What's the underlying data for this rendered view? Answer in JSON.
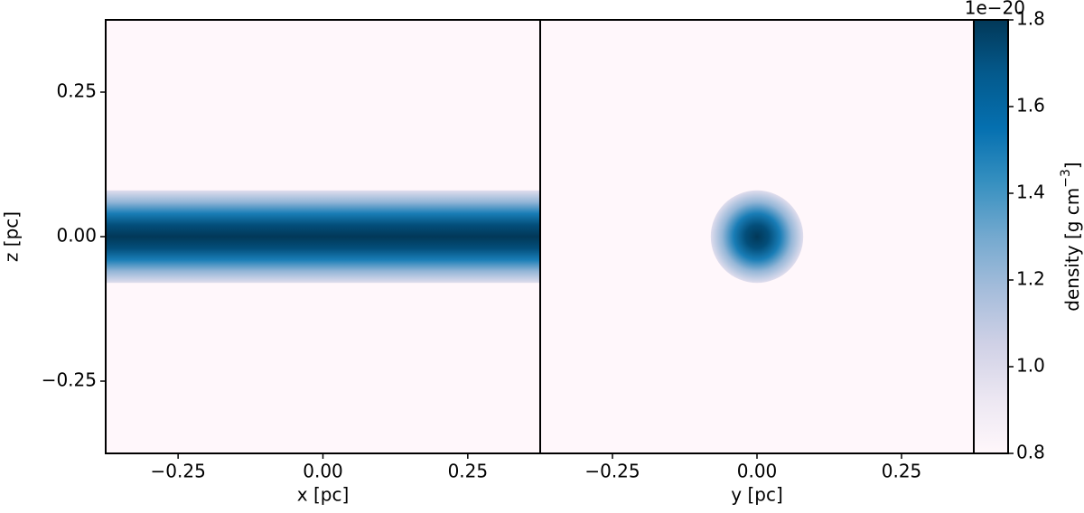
{
  "chart_data": [
    {
      "type": "heatmap",
      "shape": "band",
      "xlabel": "x [pc]",
      "ylabel": "z [pc]",
      "xlim": [
        -0.375,
        0.375
      ],
      "ylim": [
        -0.375,
        0.375
      ],
      "xticks": [
        {
          "value": -0.25,
          "label": "−0.25"
        },
        {
          "value": 0,
          "label": "0.00"
        },
        {
          "value": 0.25,
          "label": "0.25"
        }
      ],
      "yticks": [
        {
          "value": -0.25,
          "label": "−0.25"
        },
        {
          "value": 0,
          "label": "0.00"
        },
        {
          "value": 0.25,
          "label": "0.25"
        }
      ],
      "radius": [
        0,
        0.02,
        0.04,
        0.06,
        0.08
      ],
      "density": [
        1.8,
        1.72,
        1.5,
        1.22,
        0.98
      ],
      "background": 0.8
    },
    {
      "type": "heatmap",
      "shape": "disk",
      "xlabel": "y [pc]",
      "xlim": [
        -0.375,
        0.375
      ],
      "ylim": [
        -0.375,
        0.375
      ],
      "xticks": [
        {
          "value": -0.25,
          "label": "−0.25"
        },
        {
          "value": 0,
          "label": "0.00"
        },
        {
          "value": 0.25,
          "label": "0.25"
        }
      ],
      "radius": [
        0,
        0.02,
        0.04,
        0.06,
        0.08
      ],
      "density": [
        1.8,
        1.72,
        1.5,
        1.22,
        0.98
      ],
      "background": 0.8
    }
  ],
  "colorbar": {
    "label": {
      "text": "density [g cm",
      "superscript": "−3",
      "suffix": "]"
    },
    "offset": "1e−20",
    "clim": [
      0.8,
      1.8
    ],
    "ticks": [
      0.8,
      {
        "value": 1,
        "label": "1.0"
      },
      1.2,
      1.4,
      1.6,
      1.8
    ],
    "colormap": [
      "#fff7fb",
      "#ece7f2",
      "#d0d1e6",
      "#a6bddb",
      "#74a9cf",
      "#3690c0",
      "#0570b0",
      "#045a8d",
      "#023858"
    ]
  }
}
